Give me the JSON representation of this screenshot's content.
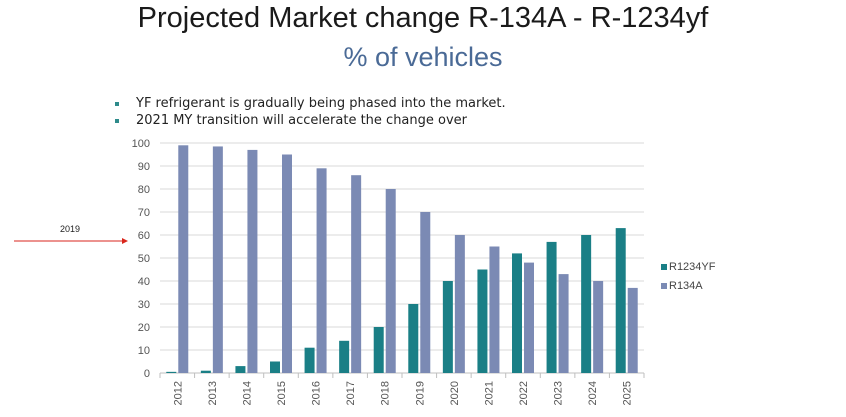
{
  "header": {
    "title": "Projected Market change R-134A - R-1234yf",
    "subtitle": "% of vehicles"
  },
  "bullets": [
    "YF refrigerant is gradually being phased into the market.",
    "2021 MY transition will accelerate the change over"
  ],
  "annotation": {
    "label": "2019"
  },
  "colors": {
    "r1234yf": "#1a7f86",
    "r134a": "#7b8ab4",
    "grid": "#d9d9d9",
    "axis_text": "#555555",
    "arrow": "#d9261c"
  },
  "chart_data": {
    "type": "bar",
    "categories": [
      "2012",
      "2013",
      "2014",
      "2015",
      "2016",
      "2017",
      "2018",
      "2019",
      "2020",
      "2021",
      "2022",
      "2023",
      "2024",
      "2025"
    ],
    "series": [
      {
        "name": "R1234YF",
        "values": [
          0.5,
          1,
          3,
          5,
          11,
          14,
          20,
          30,
          40,
          45,
          52,
          57,
          60,
          63
        ]
      },
      {
        "name": "R134A",
        "values": [
          99,
          98.5,
          97,
          95,
          89,
          86,
          80,
          70,
          60,
          55,
          48,
          43,
          40,
          37
        ]
      }
    ],
    "ylim": [
      0,
      100
    ],
    "yticks": [
      "0",
      "10",
      "20",
      "30",
      "40",
      "50",
      "60",
      "70",
      "80",
      "90",
      "100"
    ],
    "grid": true,
    "legend_position": "right"
  }
}
